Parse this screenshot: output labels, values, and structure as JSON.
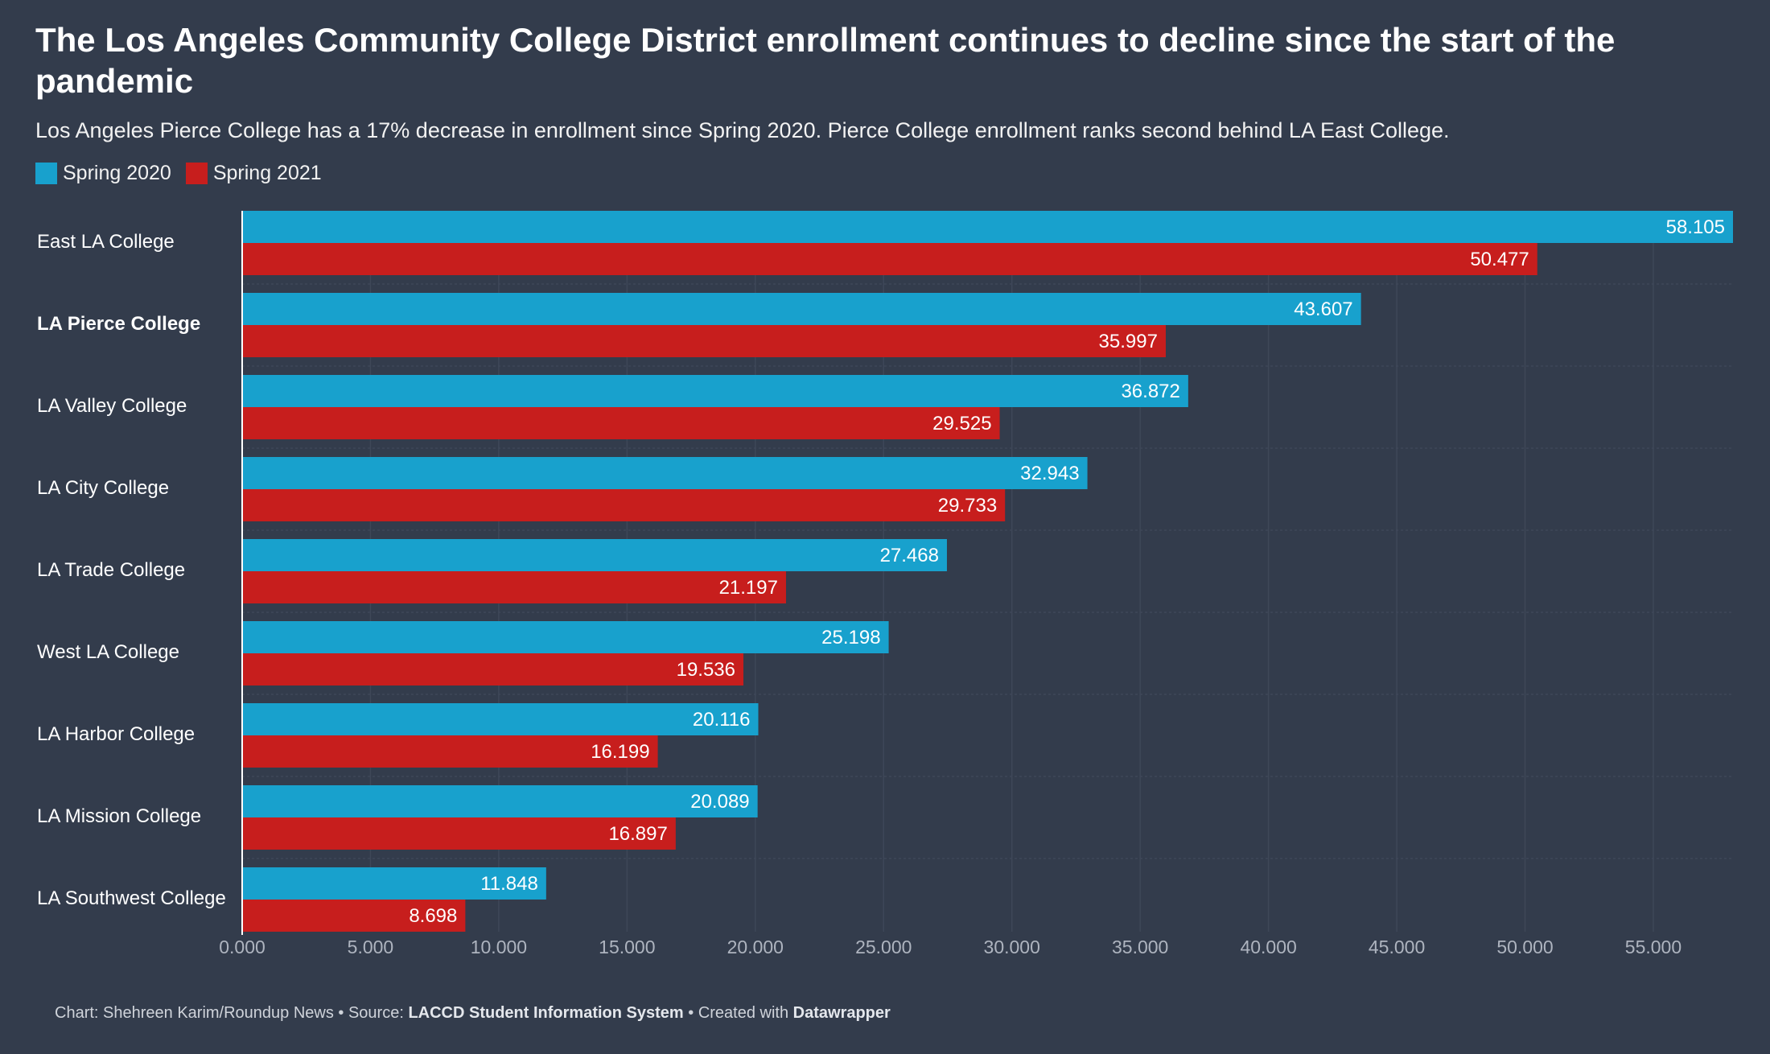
{
  "header": {
    "title": "The Los Angeles Community College District enrollment continues to decline since the start of the pandemic",
    "subtitle": "Los Angeles Pierce College has a 17% decrease in enrollment since Spring 2020. Pierce College enrollment ranks second behind LA East College."
  },
  "legend": {
    "items": [
      {
        "label": "Spring 2020",
        "color": "#18a1cd"
      },
      {
        "label": "Spring 2021",
        "color": "#c71e1d"
      }
    ]
  },
  "colors": {
    "background": "#333c4c",
    "spring_2020": "#18a1cd",
    "spring_2021": "#c71e1d"
  },
  "chart_data": {
    "type": "bar",
    "orientation": "horizontal",
    "title": "The Los Angeles Community College District enrollment continues to decline since the start of the pandemic",
    "subtitle": "Los Angeles Pierce College has a 17% decrease in enrollment since Spring 2020. Pierce College enrollment ranks second behind LA East College.",
    "categories": [
      "East LA College",
      "LA Pierce College",
      "LA Valley College",
      "LA City College",
      "LA Trade College",
      "West LA College",
      "LA Harbor College",
      "LA Mission College",
      "LA Southwest College"
    ],
    "highlighted_category": "LA Pierce College",
    "series": [
      {
        "name": "Spring 2020",
        "color": "#18a1cd",
        "values": [
          58105,
          43607,
          36872,
          32943,
          27468,
          25198,
          20116,
          20089,
          11848
        ],
        "labels": [
          "58.105",
          "43.607",
          "36.872",
          "32.943",
          "27.468",
          "25.198",
          "20.116",
          "20.089",
          "11.848"
        ]
      },
      {
        "name": "Spring 2021",
        "color": "#c71e1d",
        "values": [
          50477,
          35997,
          29525,
          29733,
          21197,
          19536,
          16199,
          16897,
          8698
        ],
        "labels": [
          "50.477",
          "35.997",
          "29.525",
          "29.733",
          "21.197",
          "19.536",
          "16.199",
          "16.897",
          "8.698"
        ]
      }
    ],
    "xlim": [
      0,
      58105
    ],
    "xticks": [
      0,
      5000,
      10000,
      15000,
      20000,
      25000,
      30000,
      35000,
      40000,
      45000,
      50000,
      55000
    ],
    "xtick_labels": [
      "0.000",
      "5.000",
      "10.000",
      "15.000",
      "20.000",
      "25.000",
      "30.000",
      "35.000",
      "40.000",
      "45.000",
      "50.000",
      "55.000"
    ],
    "grid": true,
    "legend_position": "top-left"
  },
  "footer": {
    "credit_prefix": "Chart: Shehreen Karim/Roundup News • Source: ",
    "source": "LACCD Student Information System",
    "created_prefix": " • Created with ",
    "tool": "Datawrapper"
  }
}
